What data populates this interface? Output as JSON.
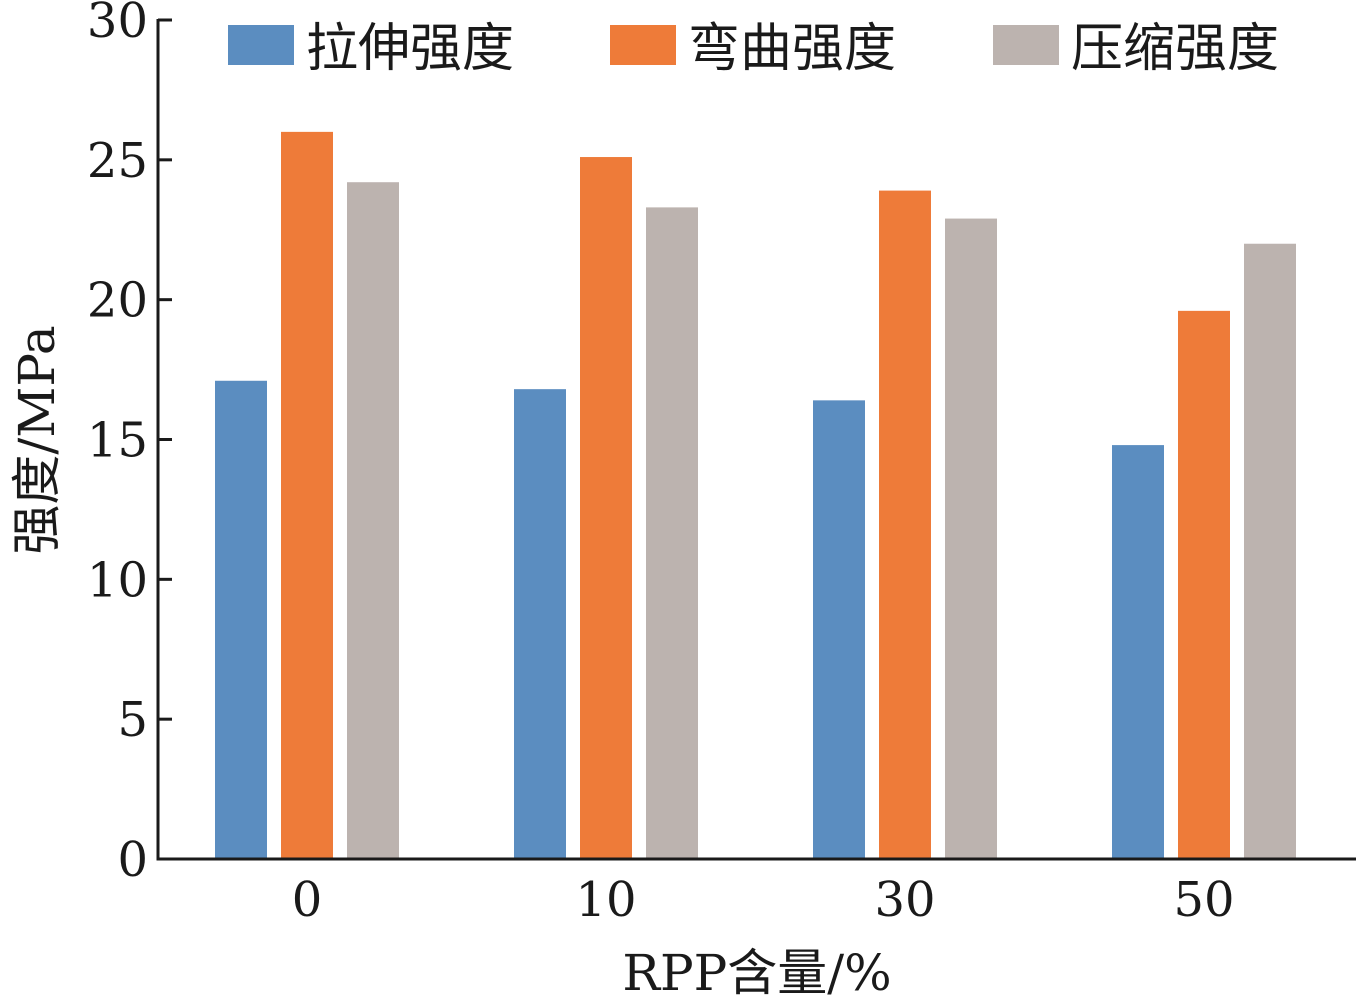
{
  "chart_data": {
    "type": "bar",
    "title": "",
    "xlabel": "RPP含量/%",
    "ylabel": "强度/MPa",
    "categories": [
      "0",
      "10",
      "30",
      "50"
    ],
    "ylim": [
      0,
      30
    ],
    "yticks": [
      0,
      5,
      10,
      15,
      20,
      25,
      30
    ],
    "grid": false,
    "legend_position": "top",
    "series": [
      {
        "name": "拉伸强度",
        "color": "#5b8dc0",
        "values": [
          17.1,
          16.8,
          16.4,
          14.8
        ]
      },
      {
        "name": "弯曲强度",
        "color": "#ee7b39",
        "values": [
          26.0,
          25.1,
          23.9,
          19.6
        ]
      },
      {
        "name": "压缩强度",
        "color": "#bcb3af",
        "values": [
          24.2,
          23.3,
          22.9,
          22.0
        ]
      }
    ]
  }
}
